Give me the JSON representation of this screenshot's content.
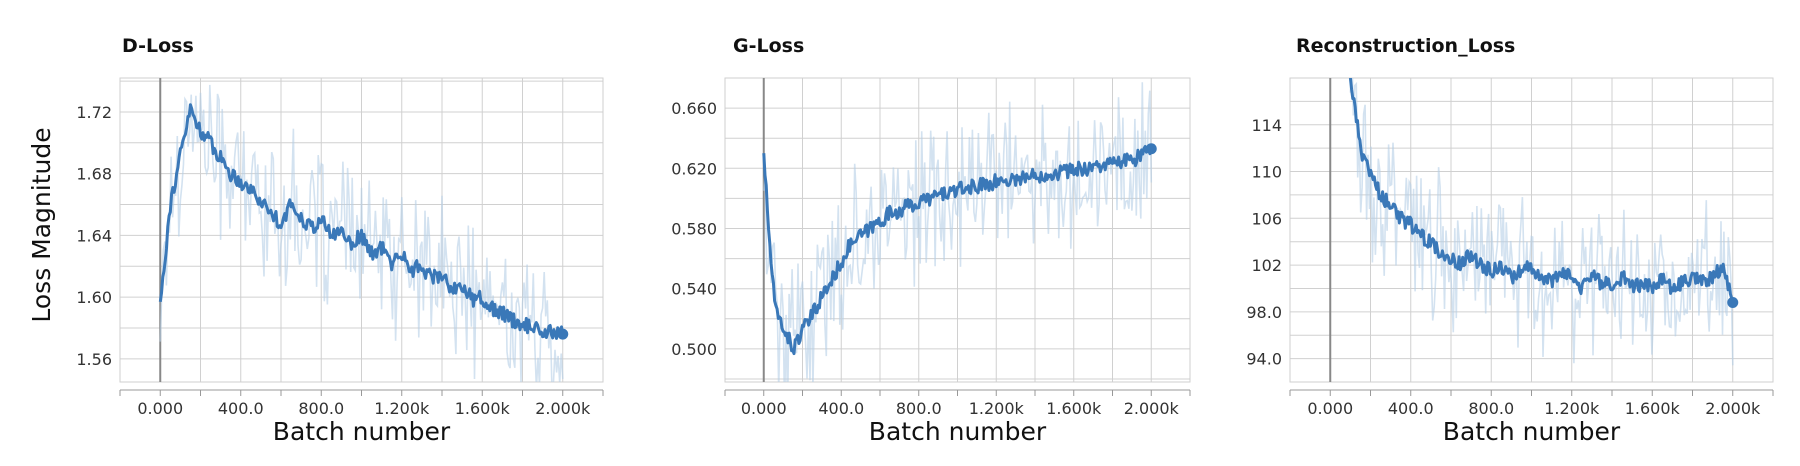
{
  "figure": {
    "ylabel": "Loss Magnitude"
  },
  "chart_data": [
    {
      "type": "line",
      "title": "D-Loss",
      "xlabel": "Batch number",
      "ylabel": "Loss Magnitude",
      "xlim": [
        -200,
        2200
      ],
      "ylim": [
        1.545,
        1.742
      ],
      "x_ticks": [
        0,
        400,
        800,
        1200,
        1600,
        2000
      ],
      "x_tick_labels": [
        "0.000",
        "400.0",
        "800.0",
        "1.200k",
        "1.600k",
        "2.000k"
      ],
      "y_ticks": [
        1.56,
        1.6,
        1.64,
        1.68,
        1.72
      ],
      "y_tick_labels": [
        "1.56",
        "1.60",
        "1.64",
        "1.68",
        "1.72"
      ],
      "grid": true,
      "series": [
        {
          "color": "#3a78b8",
          "x": [
            0,
            50,
            100,
            150,
            200,
            250,
            300,
            350,
            400,
            450,
            500,
            550,
            600,
            650,
            700,
            750,
            800,
            850,
            900,
            950,
            1000,
            1050,
            1100,
            1150,
            1200,
            1250,
            1300,
            1350,
            1400,
            1450,
            1500,
            1550,
            1600,
            1650,
            1700,
            1750,
            1800,
            1850,
            1900,
            1950,
            2000
          ],
          "y": [
            1.597,
            1.66,
            1.692,
            1.722,
            1.708,
            1.7,
            1.69,
            1.68,
            1.675,
            1.67,
            1.662,
            1.655,
            1.648,
            1.66,
            1.652,
            1.645,
            1.65,
            1.64,
            1.643,
            1.635,
            1.64,
            1.628,
            1.632,
            1.622,
            1.628,
            1.618,
            1.62,
            1.612,
            1.615,
            1.605,
            1.608,
            1.598,
            1.6,
            1.592,
            1.59,
            1.585,
            1.583,
            1.58,
            1.578,
            1.577,
            1.576
          ]
        }
      ]
    },
    {
      "type": "line",
      "title": "G-Loss",
      "xlabel": "Batch number",
      "ylabel": "",
      "xlim": [
        -200,
        2200
      ],
      "ylim": [
        0.478,
        0.68
      ],
      "x_ticks": [
        0,
        400,
        800,
        1200,
        1600,
        2000
      ],
      "x_tick_labels": [
        "0.000",
        "400.0",
        "800.0",
        "1.200k",
        "1.600k",
        "2.000k"
      ],
      "y_ticks": [
        0.5,
        0.54,
        0.58,
        0.62,
        0.66
      ],
      "y_tick_labels": [
        "0.500",
        "0.540",
        "0.580",
        "0.620",
        "0.660"
      ],
      "grid": true,
      "series": [
        {
          "color": "#3a78b8",
          "x": [
            0,
            30,
            60,
            100,
            150,
            200,
            250,
            300,
            350,
            400,
            450,
            500,
            550,
            600,
            650,
            700,
            750,
            800,
            850,
            900,
            950,
            1000,
            1050,
            1100,
            1150,
            1200,
            1250,
            1300,
            1350,
            1400,
            1450,
            1500,
            1550,
            1600,
            1650,
            1700,
            1750,
            1800,
            1850,
            1900,
            1950,
            2000
          ],
          "y": [
            0.63,
            0.57,
            0.525,
            0.515,
            0.5,
            0.512,
            0.522,
            0.535,
            0.545,
            0.558,
            0.57,
            0.575,
            0.58,
            0.585,
            0.59,
            0.592,
            0.595,
            0.597,
            0.6,
            0.602,
            0.604,
            0.605,
            0.607,
            0.608,
            0.61,
            0.611,
            0.612,
            0.613,
            0.614,
            0.615,
            0.616,
            0.617,
            0.618,
            0.619,
            0.62,
            0.621,
            0.622,
            0.623,
            0.624,
            0.626,
            0.628,
            0.633
          ]
        }
      ]
    },
    {
      "type": "line",
      "title": "Reconstruction_Loss",
      "xlabel": "Batch number",
      "ylabel": "",
      "xlim": [
        -200,
        2200
      ],
      "ylim": [
        92.0,
        118.0
      ],
      "x_ticks": [
        0,
        400,
        800,
        1200,
        1600,
        2000
      ],
      "x_tick_labels": [
        "0.000",
        "400.0",
        "800.0",
        "1.200k",
        "1.600k",
        "2.000k"
      ],
      "y_ticks": [
        94.0,
        98.0,
        102,
        106,
        110,
        114
      ],
      "y_tick_labels": [
        "94.0",
        "98.0",
        "102",
        "106",
        "110",
        "114"
      ],
      "grid": true,
      "series": [
        {
          "color": "#3a78b8",
          "x": [
            100,
            150,
            200,
            250,
            300,
            350,
            400,
            450,
            500,
            550,
            600,
            650,
            700,
            750,
            800,
            850,
            900,
            950,
            1000,
            1050,
            1100,
            1150,
            1200,
            1250,
            1300,
            1350,
            1400,
            1450,
            1500,
            1550,
            1600,
            1650,
            1700,
            1750,
            1800,
            1850,
            1900,
            1950,
            2000
          ],
          "y": [
            118.0,
            112.0,
            109.5,
            108.0,
            107.0,
            106.0,
            105.5,
            104.5,
            104.0,
            103.0,
            102.5,
            102.0,
            103.0,
            102.0,
            101.5,
            102.0,
            101.0,
            101.5,
            101.8,
            101.0,
            100.5,
            101.5,
            101.0,
            100.0,
            101.0,
            100.5,
            100.5,
            101.0,
            100.0,
            100.5,
            100.0,
            101.0,
            100.0,
            100.5,
            101.0,
            100.5,
            101.0,
            102.0,
            98.8
          ]
        }
      ]
    }
  ]
}
